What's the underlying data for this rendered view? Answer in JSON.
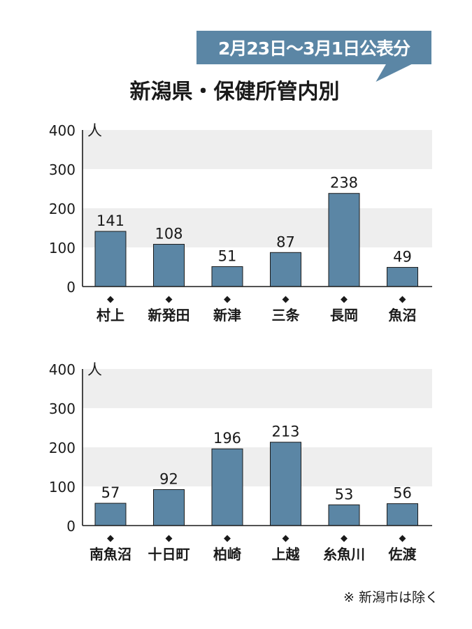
{
  "badge": "2月23日～3月1日公表分",
  "title": "新潟県・保健所管内別",
  "note": "※ 新潟市は除く",
  "colors": {
    "bar": "#5b86a5",
    "band": "#eeeeee",
    "badge": "#5b86a5"
  },
  "chart_data": [
    {
      "type": "bar",
      "unit": "人",
      "ylim": [
        0,
        400
      ],
      "yticks": [
        0,
        100,
        200,
        300,
        400
      ],
      "categories": [
        "村上",
        "新発田",
        "新津",
        "三条",
        "長岡",
        "魚沼"
      ],
      "values": [
        141,
        108,
        51,
        87,
        238,
        49
      ]
    },
    {
      "type": "bar",
      "unit": "人",
      "ylim": [
        0,
        400
      ],
      "yticks": [
        0,
        100,
        200,
        300,
        400
      ],
      "categories": [
        "南魚沼",
        "十日町",
        "柏崎",
        "上越",
        "糸魚川",
        "佐渡"
      ],
      "values": [
        57,
        92,
        196,
        213,
        53,
        56
      ]
    }
  ]
}
